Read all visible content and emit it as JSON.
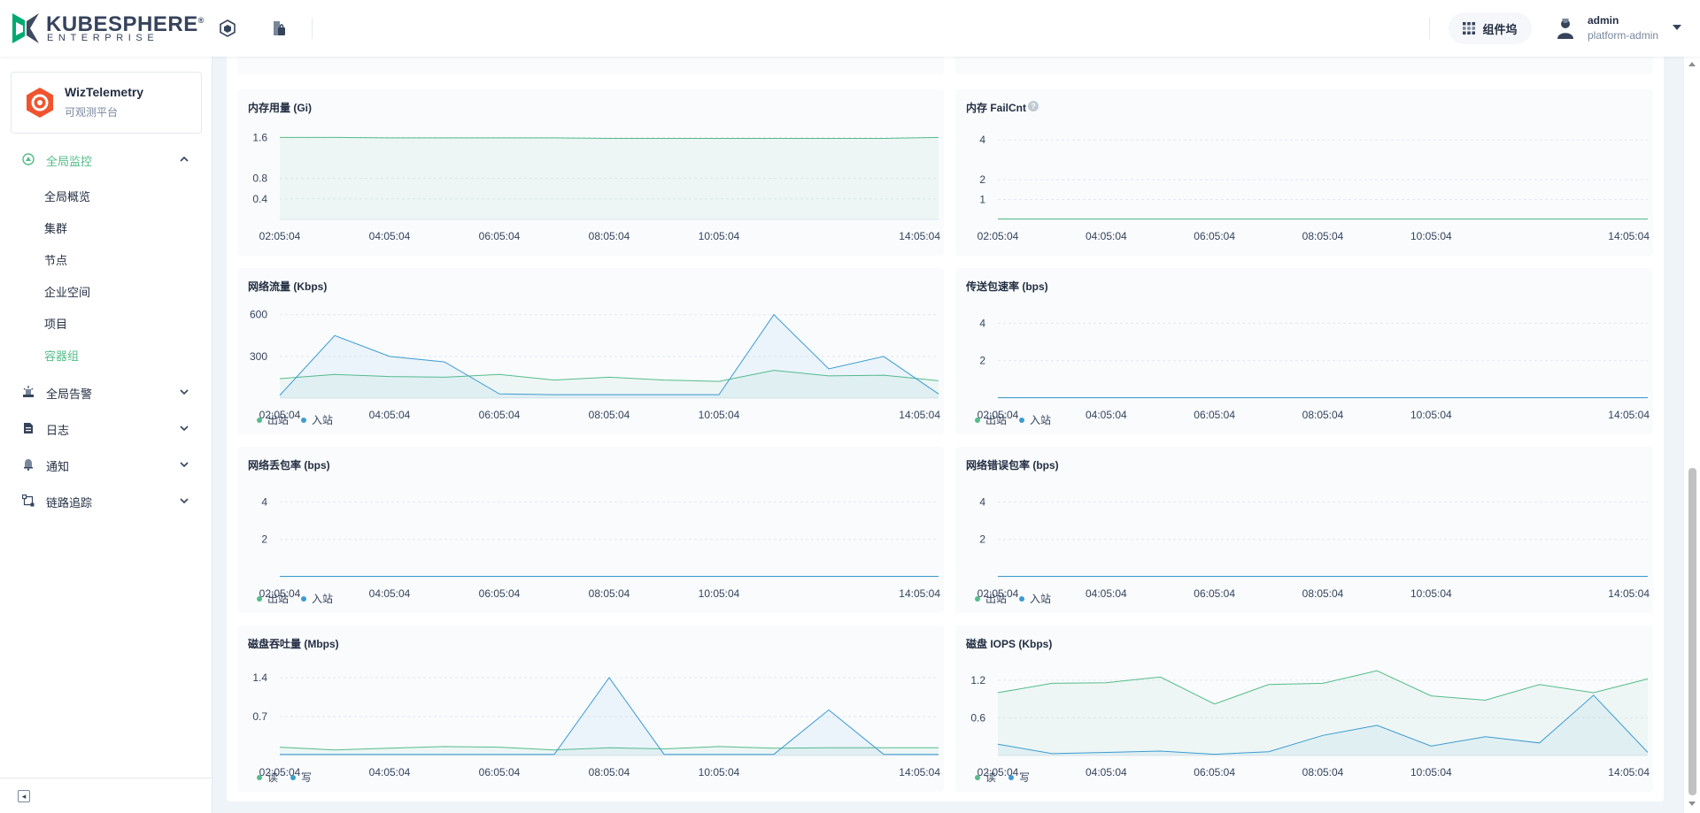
{
  "brand": {
    "name": "KUBESPHERE",
    "registered": "®",
    "edition": "ENTERPRISE"
  },
  "header": {
    "components_label": "组件坞",
    "user": {
      "name": "admin",
      "role": "platform-admin"
    }
  },
  "app": {
    "name": "WizTelemetry",
    "description": "可观测平台"
  },
  "sidebar": {
    "groups": [
      {
        "label": "全局监控",
        "icon": "monitor-icon",
        "expanded": true
      },
      {
        "label": "全局告警",
        "icon": "alert-icon",
        "expanded": false
      },
      {
        "label": "日志",
        "icon": "log-icon",
        "expanded": false
      },
      {
        "label": "通知",
        "icon": "bell-icon",
        "expanded": false
      },
      {
        "label": "链路追踪",
        "icon": "trace-icon",
        "expanded": false
      }
    ],
    "items": [
      "全局概览",
      "集群",
      "节点",
      "企业空间",
      "项目",
      "容器组"
    ],
    "active_item": "容器组"
  },
  "colors": {
    "green": "#55bc8a",
    "blue": "#3d9bd1",
    "accent": "#55bc8a"
  },
  "time_ticks": [
    "02:05:04",
    "04:05:04",
    "06:05:04",
    "08:05:04",
    "10:05:04",
    "14:05:04"
  ],
  "charts": [
    {
      "id": "memory-usage",
      "title": "内存用量 (Gi)",
      "help": false,
      "yticks": [
        "1.6",
        "0.8",
        "0.4"
      ],
      "ymax": 1.9,
      "series": [
        {
          "name": "",
          "color": "#55bc8a",
          "values": [
            1.6,
            1.6,
            1.59,
            1.59,
            1.59,
            1.59,
            1.58,
            1.58,
            1.58,
            1.58,
            1.58,
            1.58,
            1.6
          ]
        }
      ],
      "legend": []
    },
    {
      "id": "memory-failcnt",
      "title": "内存 FailCnt",
      "help": true,
      "yticks": [
        "4",
        "2",
        "1"
      ],
      "ymax": 4.9,
      "series": [
        {
          "name": "",
          "color": "#55bc8a",
          "values": [
            0,
            0,
            0,
            0,
            0,
            0,
            0,
            0,
            0,
            0,
            0,
            0,
            0
          ]
        }
      ],
      "legend": []
    },
    {
      "id": "network-traffic",
      "title": "网络流量 (Kbps)",
      "help": false,
      "yticks": [
        "600",
        "300"
      ],
      "ymax": 700,
      "series": [
        {
          "name": "出站",
          "color": "#55bc8a",
          "values": [
            140,
            170,
            155,
            150,
            170,
            130,
            150,
            130,
            120,
            200,
            160,
            165,
            125
          ]
        },
        {
          "name": "入站",
          "color": "#3d9bd1",
          "values": [
            20,
            450,
            300,
            260,
            30,
            25,
            25,
            25,
            25,
            600,
            210,
            300,
            30
          ]
        }
      ],
      "legend": [
        "出站",
        "入站"
      ]
    },
    {
      "id": "packet-rate",
      "title": "传送包速率 (bps)",
      "help": false,
      "yticks": [
        "4",
        "2"
      ],
      "ymax": 5.2,
      "series": [
        {
          "name": "出站",
          "color": "#55bc8a",
          "values": [
            0,
            0,
            0,
            0,
            0,
            0,
            0,
            0,
            0,
            0,
            0,
            0,
            0
          ]
        },
        {
          "name": "入站",
          "color": "#3d9bd1",
          "values": [
            0,
            0,
            0,
            0,
            0,
            0,
            0,
            0,
            0,
            0,
            0,
            0,
            0
          ]
        }
      ],
      "legend": [
        "出站",
        "入站"
      ]
    },
    {
      "id": "packet-loss",
      "title": "网络丢包率 (bps)",
      "help": false,
      "yticks": [
        "4",
        "2"
      ],
      "ymax": 5.2,
      "series": [
        {
          "name": "出站",
          "color": "#55bc8a",
          "values": [
            0,
            0,
            0,
            0,
            0,
            0,
            0,
            0,
            0,
            0,
            0,
            0,
            0
          ]
        },
        {
          "name": "入站",
          "color": "#3d9bd1",
          "values": [
            0,
            0,
            0,
            0,
            0,
            0,
            0,
            0,
            0,
            0,
            0,
            0,
            0
          ]
        }
      ],
      "legend": [
        "出站",
        "入站"
      ]
    },
    {
      "id": "packet-error",
      "title": "网络错误包率 (bps)",
      "help": false,
      "yticks": [
        "4",
        "2"
      ],
      "ymax": 5.2,
      "series": [
        {
          "name": "出站",
          "color": "#55bc8a",
          "values": [
            0,
            0,
            0,
            0,
            0,
            0,
            0,
            0,
            0,
            0,
            0,
            0,
            0
          ]
        },
        {
          "name": "入站",
          "color": "#3d9bd1",
          "values": [
            0,
            0,
            0,
            0,
            0,
            0,
            0,
            0,
            0,
            0,
            0,
            0,
            0
          ]
        }
      ],
      "legend": [
        "出站",
        "入站"
      ]
    },
    {
      "id": "disk-throughput",
      "title": "磁盘吞吐量 (Mbps)",
      "help": false,
      "yticks": [
        "1.4",
        "0.7"
      ],
      "ymax": 1.75,
      "series": [
        {
          "name": "读",
          "color": "#55bc8a",
          "values": [
            0.15,
            0.1,
            0.13,
            0.16,
            0.15,
            0.1,
            0.14,
            0.12,
            0.16,
            0.13,
            0.14,
            0.14,
            0.14
          ]
        },
        {
          "name": "写",
          "color": "#3d9bd1",
          "values": [
            0.02,
            0.02,
            0.02,
            0.02,
            0.02,
            0.02,
            1.4,
            0.02,
            0.02,
            0.02,
            0.82,
            0.02,
            0.02
          ]
        }
      ],
      "legend": [
        "读",
        "写"
      ]
    },
    {
      "id": "disk-iops",
      "title": "磁盘 IOPS (Kbps)",
      "help": false,
      "yticks": [
        "1.2",
        "0.6"
      ],
      "ymax": 1.55,
      "series": [
        {
          "name": "读",
          "color": "#55bc8a",
          "values": [
            1.0,
            1.15,
            1.16,
            1.25,
            0.82,
            1.13,
            1.15,
            1.35,
            0.95,
            0.88,
            1.13,
            1.0,
            1.22
          ]
        },
        {
          "name": "写",
          "color": "#3d9bd1",
          "values": [
            0.18,
            0.03,
            0.05,
            0.07,
            0.02,
            0.06,
            0.32,
            0.48,
            0.15,
            0.3,
            0.2,
            0.96,
            0.05
          ]
        }
      ],
      "legend": [
        "读",
        "写"
      ]
    }
  ]
}
